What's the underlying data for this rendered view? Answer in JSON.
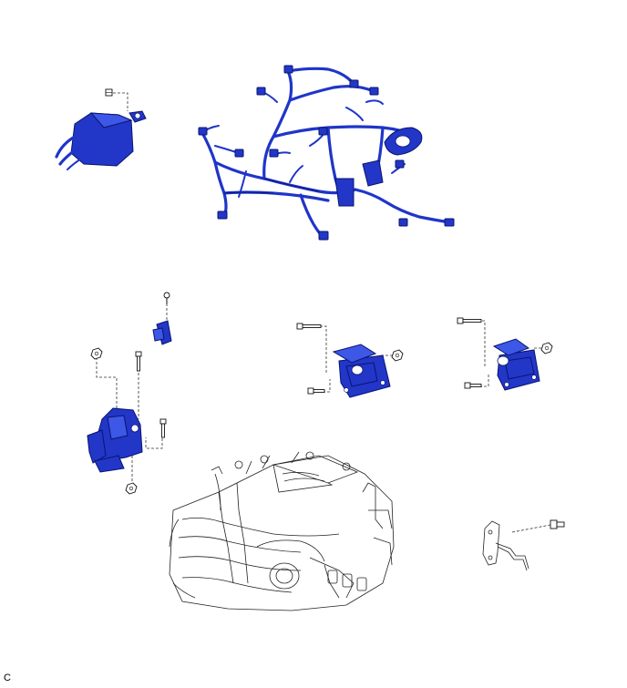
{
  "figure": {
    "label": "C",
    "colors": {
      "highlight_part": "#2236c8",
      "line_art": "#222222",
      "background": "#ffffff"
    }
  }
}
